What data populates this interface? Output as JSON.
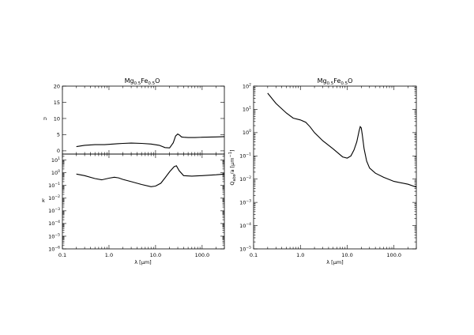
{
  "chart_data": [
    {
      "id": "n",
      "type": "line",
      "title": "Mg0.5Fe0.5O",
      "title_parts": {
        "main": "Mg",
        "sub1": "0.5",
        "mid": "Fe",
        "sub2": "0.5",
        "end": "O"
      },
      "xlabel": "",
      "ylabel": "n",
      "xscale": "log",
      "yscale": "linear",
      "xlim": [
        0.1,
        300
      ],
      "ylim": [
        -1,
        20
      ],
      "yticks": [
        0,
        5,
        10,
        15,
        20
      ],
      "ytick_labels": [
        "0",
        "5",
        "10",
        "15",
        "20"
      ],
      "x": [
        0.2,
        0.3,
        0.5,
        0.8,
        1.0,
        1.5,
        2,
        3,
        5,
        8,
        12,
        16,
        20,
        24,
        27,
        30,
        33,
        36,
        40,
        50,
        70,
        100,
        200,
        300
      ],
      "values": [
        1.3,
        1.7,
        1.9,
        1.9,
        2.0,
        2.2,
        2.3,
        2.4,
        2.3,
        2.1,
        1.7,
        1.0,
        0.9,
        2.5,
        4.6,
        5.2,
        4.8,
        4.3,
        4.2,
        4.1,
        4.1,
        4.2,
        4.3,
        4.4
      ]
    },
    {
      "id": "k",
      "type": "line",
      "title": "",
      "xlabel": "λ [µm]",
      "ylabel": "k",
      "xscale": "log",
      "yscale": "log",
      "xlim": [
        0.1,
        300
      ],
      "ylim": [
        1e-06,
        30
      ],
      "xticks": [
        0.1,
        1,
        10,
        100
      ],
      "xtick_labels": [
        "0.1",
        "1.0",
        "10.0",
        "100.0"
      ],
      "yticks": [
        1e-06,
        1e-05,
        0.0001,
        0.001,
        0.01,
        0.1,
        1,
        10
      ],
      "ytick_labels": [
        {
          "b": "10",
          "e": "−6"
        },
        {
          "b": "10",
          "e": "−5"
        },
        {
          "b": "10",
          "e": "−4"
        },
        {
          "b": "10",
          "e": "−3"
        },
        {
          "b": "10",
          "e": "−2"
        },
        {
          "b": "10",
          "e": "−1"
        },
        {
          "b": "10",
          "e": "0"
        },
        {
          "b": "10",
          "e": "1"
        }
      ],
      "x": [
        0.2,
        0.3,
        0.5,
        0.7,
        1.0,
        1.3,
        1.6,
        2,
        3,
        5,
        8,
        10,
        13,
        16,
        20,
        25,
        28,
        32,
        40,
        60,
        100,
        200,
        300
      ],
      "values": [
        0.8,
        0.6,
        0.35,
        0.28,
        0.38,
        0.45,
        0.4,
        0.3,
        0.2,
        0.12,
        0.08,
        0.09,
        0.15,
        0.4,
        1.2,
        3.0,
        3.6,
        1.5,
        0.6,
        0.55,
        0.6,
        0.7,
        0.8
      ]
    },
    {
      "id": "qabs",
      "type": "line",
      "title": "Mg0.5Fe0.5O",
      "title_parts": {
        "main": "Mg",
        "sub1": "0.5",
        "mid": "Fe",
        "sub2": "0.5",
        "end": "O"
      },
      "xlabel": "λ [µm]",
      "ylabel": "Qabs/a [µm⁻¹]",
      "ylabel_parts": {
        "q": "Q",
        "sub": "abs",
        "rest": "/a [µm",
        "sup": "−1",
        "close": "]"
      },
      "xscale": "log",
      "yscale": "log",
      "xlim": [
        0.1,
        300
      ],
      "ylim": [
        1e-05,
        100
      ],
      "xticks": [
        0.1,
        1,
        10,
        100
      ],
      "xtick_labels": [
        "0.1",
        "1.0",
        "10.0",
        "100.0"
      ],
      "yticks": [
        1e-05,
        0.0001,
        0.001,
        0.01,
        0.1,
        1,
        10,
        100
      ],
      "ytick_labels": [
        {
          "b": "10",
          "e": "−5"
        },
        {
          "b": "10",
          "e": "−4"
        },
        {
          "b": "10",
          "e": "−3"
        },
        {
          "b": "10",
          "e": "−2"
        },
        {
          "b": "10",
          "e": "−1"
        },
        {
          "b": "10",
          "e": "0"
        },
        {
          "b": "10",
          "e": "1"
        },
        {
          "b": "10",
          "e": "2"
        }
      ],
      "x": [
        0.2,
        0.3,
        0.5,
        0.7,
        1.0,
        1.3,
        1.6,
        2,
        3,
        5,
        8,
        10,
        12,
        14,
        16,
        18,
        19,
        20,
        21,
        23,
        26,
        30,
        40,
        60,
        100,
        200,
        300
      ],
      "values": [
        50,
        18,
        7,
        4.2,
        3.5,
        2.8,
        1.8,
        1.0,
        0.45,
        0.2,
        0.09,
        0.08,
        0.1,
        0.18,
        0.4,
        1.2,
        1.8,
        1.6,
        0.8,
        0.2,
        0.06,
        0.03,
        0.018,
        0.012,
        0.008,
        0.006,
        0.0045
      ]
    }
  ]
}
